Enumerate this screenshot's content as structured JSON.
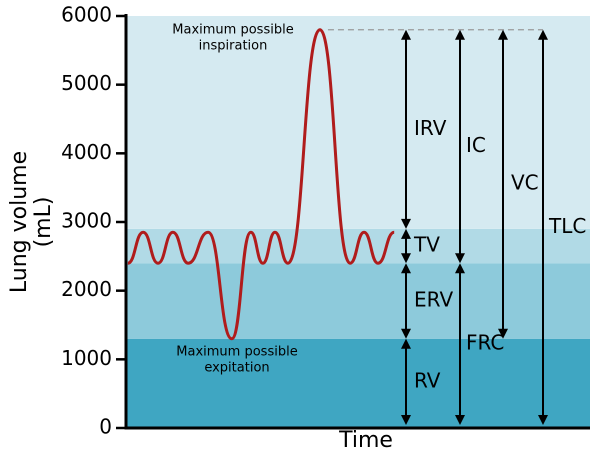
{
  "chart_data": {
    "type": "spirogram",
    "y_label": [
      "Lung volume",
      "(mL)"
    ],
    "x_label": "Time",
    "ylim": [
      0,
      6000
    ],
    "yticks": [
      0,
      1000,
      2000,
      3000,
      4000,
      5000,
      6000
    ],
    "xlim": [
      0,
      100
    ],
    "bands": [
      {
        "from": 0,
        "to": 1300,
        "color": "#3fa6c2"
      },
      {
        "from": 1300,
        "to": 2400,
        "color": "#8dcadb"
      },
      {
        "from": 2400,
        "to": 2900,
        "color": "#b1dae6"
      },
      {
        "from": 2900,
        "to": 6000,
        "color": "#d5eaf1"
      }
    ],
    "trace": {
      "color": "#b01c1c",
      "x": [
        0.4,
        3.7,
        6.9,
        10.1,
        13.4,
        17.7,
        22.8,
        26.9,
        29.5,
        32.1,
        34.9,
        41.8,
        48.3,
        51.3,
        54.3,
        57.8
      ],
      "values": [
        2400,
        2850,
        2400,
        2850,
        2400,
        2850,
        1300,
        2850,
        2400,
        2850,
        2400,
        5800,
        2400,
        2850,
        2400,
        2850
      ]
    },
    "reference_line": 5800,
    "arrows": [
      {
        "label": "IRV",
        "from": 2900,
        "to": 5800
      },
      {
        "label": "TV",
        "from": 2400,
        "to": 2900
      },
      {
        "label": "ERV",
        "from": 1300,
        "to": 2400
      },
      {
        "label": "RV",
        "from": 0,
        "to": 1300
      },
      {
        "label": "IC",
        "from": 2400,
        "to": 5800
      },
      {
        "label": "FRC",
        "from": 0,
        "to": 2400
      },
      {
        "label": "VC",
        "from": 1300,
        "to": 5800
      },
      {
        "label": "TLC",
        "from": 0,
        "to": 5800
      }
    ],
    "annotations": [
      {
        "lines": [
          "Maximum possible",
          "inspiration"
        ]
      },
      {
        "lines": [
          "Maximum possible",
          "expitation"
        ]
      }
    ]
  }
}
